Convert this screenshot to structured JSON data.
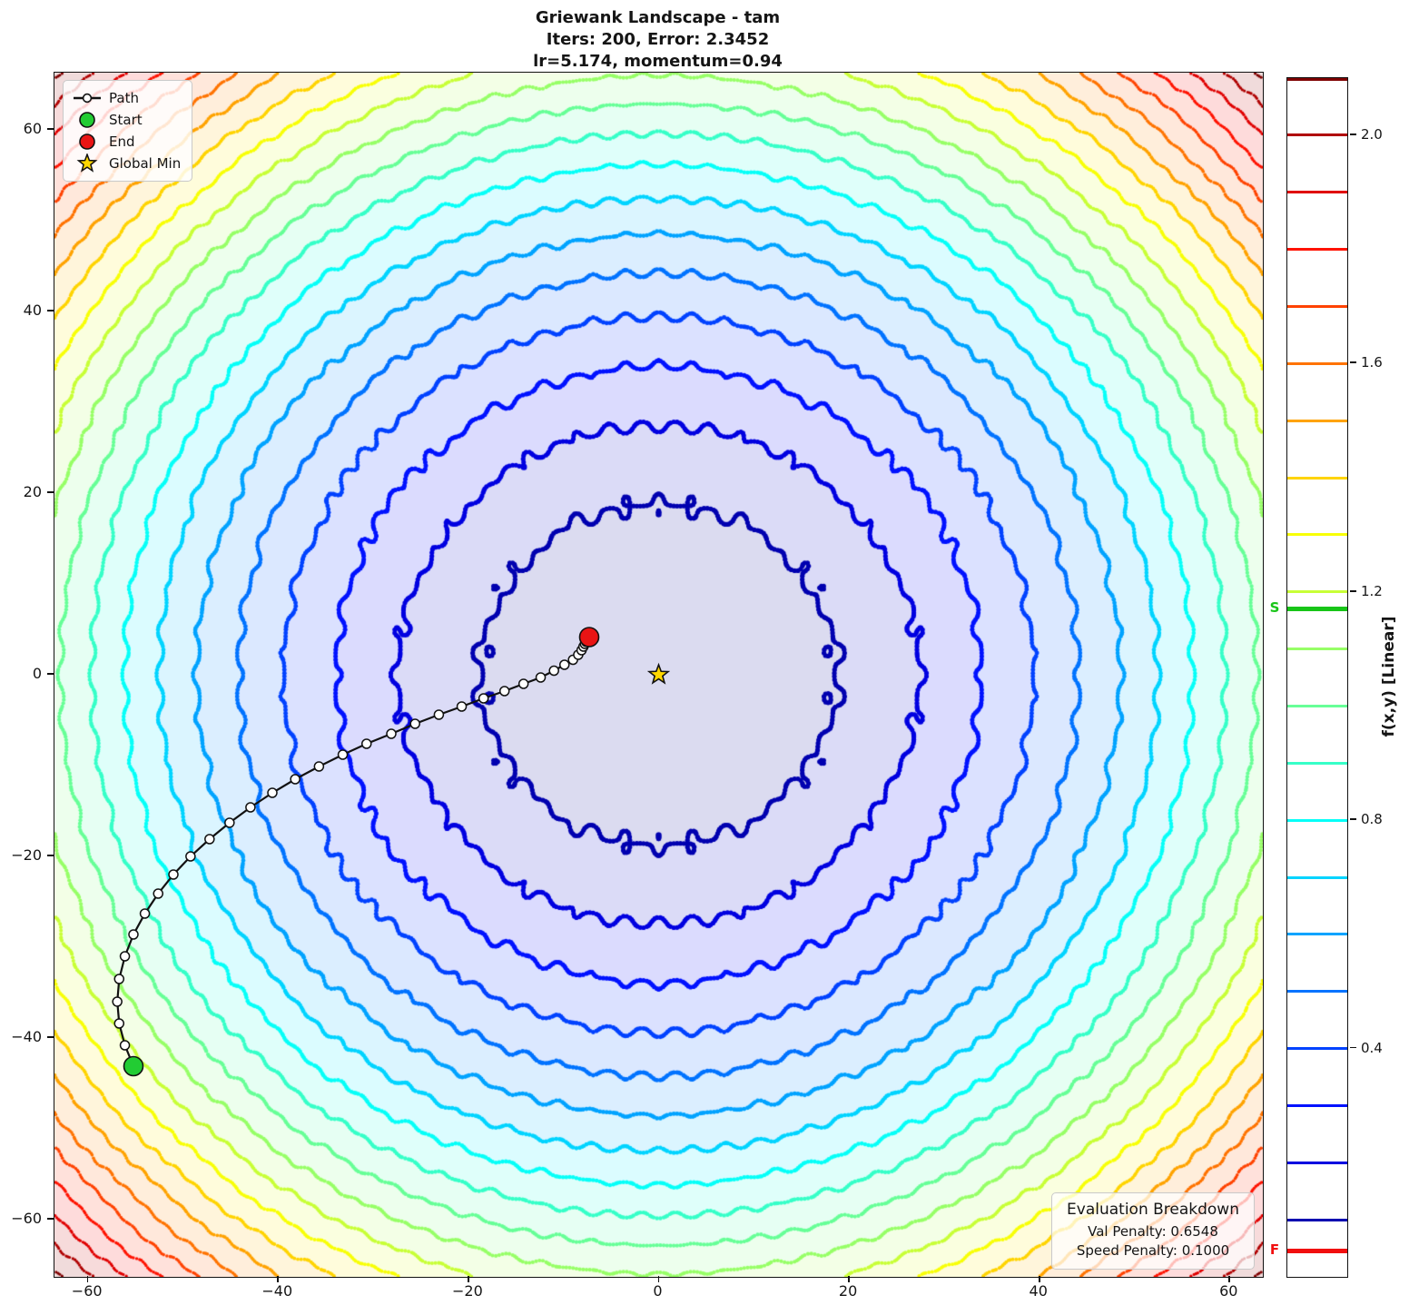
{
  "header": {
    "title": "Griewank Landscape - tam",
    "subtitle1": "Iters: 200, Error: 2.3452",
    "subtitle2": "lr=5.174, momentum=0.94"
  },
  "legend": {
    "items": [
      {
        "label": "Path"
      },
      {
        "label": "Start"
      },
      {
        "label": "End"
      },
      {
        "label": "Global Min"
      }
    ]
  },
  "eval_box": {
    "title": "Evaluation Breakdown",
    "val_penalty": "Val Penalty: 0.6548",
    "speed_penalty": "Speed Penalty: 0.1000"
  },
  "colors": {
    "start": "#22cc33",
    "end": "#e91414",
    "global_min": "#ffd700",
    "path_line": "#111111",
    "path_marker_fill": "#ffffff",
    "s_marker": "#18c518",
    "f_marker": "#f10f0f"
  },
  "chart_data": {
    "type": "contour",
    "title": "Griewank Landscape - tam",
    "xlim": [
      -63.5,
      63.5
    ],
    "ylim": [
      -66.3,
      66.3
    ],
    "x_ticks": [
      {
        "value": -60,
        "label": "−60"
      },
      {
        "value": -40,
        "label": "−40"
      },
      {
        "value": -20,
        "label": "−20"
      },
      {
        "value": 0,
        "label": "0"
      },
      {
        "value": 20,
        "label": "20"
      },
      {
        "value": 40,
        "label": "40"
      },
      {
        "value": 60,
        "label": "60"
      }
    ],
    "y_ticks": [
      {
        "value": 60,
        "label": "60"
      },
      {
        "value": 40,
        "label": "40"
      },
      {
        "value": 20,
        "label": "20"
      },
      {
        "value": 0,
        "label": "0"
      },
      {
        "value": -20,
        "label": "−20"
      },
      {
        "value": -40,
        "label": "−40"
      },
      {
        "value": -60,
        "label": "−60"
      }
    ],
    "contour_levels": {
      "min": 0.1,
      "max": 2.1,
      "step": 0.1
    },
    "colormap": "jet",
    "global_min": [
      0,
      0
    ],
    "start": [
      -55.2,
      -43.1
    ],
    "end": [
      -7.3,
      4.15
    ],
    "path": [
      [
        -55.2,
        -43.1
      ],
      [
        -56.1,
        -40.8
      ],
      [
        -56.7,
        -38.4
      ],
      [
        -56.9,
        -36.0
      ],
      [
        -56.7,
        -33.5
      ],
      [
        -56.1,
        -31.0
      ],
      [
        -55.2,
        -28.6
      ],
      [
        -54.0,
        -26.3
      ],
      [
        -52.6,
        -24.1
      ],
      [
        -51.0,
        -22.0
      ],
      [
        -49.2,
        -20.0
      ],
      [
        -47.2,
        -18.1
      ],
      [
        -45.1,
        -16.3
      ],
      [
        -42.9,
        -14.6
      ],
      [
        -40.6,
        -13.0
      ],
      [
        -38.2,
        -11.5
      ],
      [
        -35.7,
        -10.1
      ],
      [
        -33.2,
        -8.8
      ],
      [
        -30.7,
        -7.6
      ],
      [
        -28.1,
        -6.5
      ],
      [
        -25.6,
        -5.4
      ],
      [
        -23.1,
        -4.4
      ],
      [
        -20.7,
        -3.5
      ],
      [
        -18.4,
        -2.6
      ],
      [
        -16.2,
        -1.8
      ],
      [
        -14.2,
        -1.0
      ],
      [
        -12.4,
        -0.3
      ],
      [
        -11.0,
        0.45
      ],
      [
        -9.9,
        1.1
      ],
      [
        -9.0,
        1.65
      ],
      [
        -8.45,
        2.2
      ],
      [
        -8.1,
        2.7
      ],
      [
        -7.9,
        3.1
      ],
      [
        -7.75,
        3.4
      ],
      [
        -7.62,
        3.62
      ],
      [
        -7.52,
        3.78
      ],
      [
        -7.45,
        3.9
      ],
      [
        -7.4,
        3.98
      ],
      [
        -7.37,
        4.04
      ],
      [
        -7.35,
        4.08
      ],
      [
        -7.33,
        4.11
      ],
      [
        -7.32,
        4.13
      ],
      [
        -7.31,
        4.14
      ],
      [
        -7.3,
        4.15
      ]
    ],
    "colorbar": {
      "label": "f(x,y) [Linear]",
      "range": [
        0,
        2.1
      ],
      "ticks": [
        {
          "value": 2.0,
          "label": "2.0"
        },
        {
          "value": 1.6,
          "label": "1.6"
        },
        {
          "value": 1.2,
          "label": "1.2"
        },
        {
          "value": 0.8,
          "label": "0.8"
        },
        {
          "value": 0.4,
          "label": "0.4"
        }
      ],
      "start_marker": {
        "label": "S",
        "value": 1.17
      },
      "final_marker": {
        "label": "F",
        "value": 0.045
      }
    }
  }
}
